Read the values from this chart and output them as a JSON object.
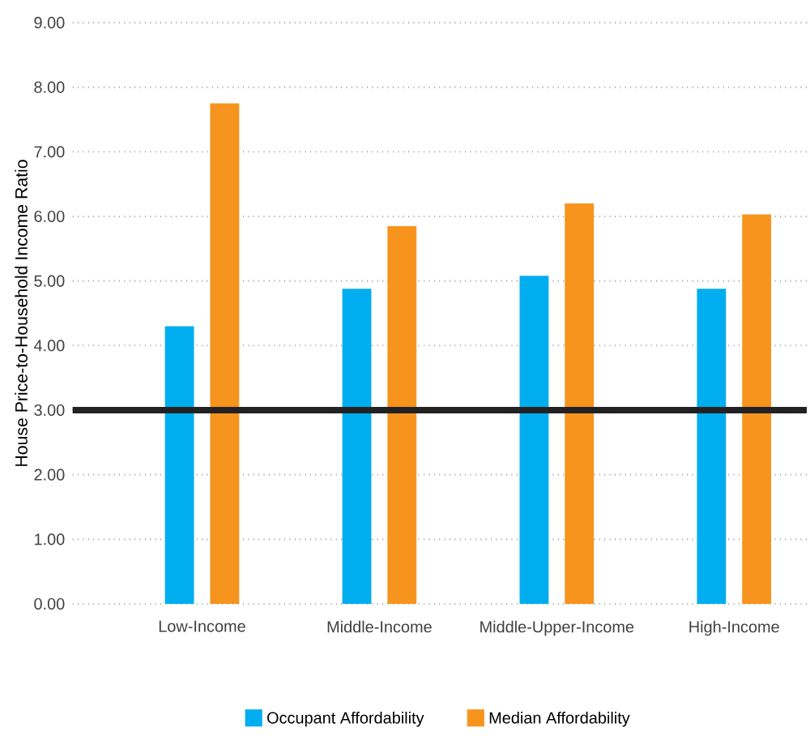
{
  "chart_data": {
    "type": "bar",
    "ylabel": "House Price-to-Household Income Ratio",
    "categories": [
      "Low-Income",
      "Middle-Income",
      "Middle-Upper-Income",
      "High-Income"
    ],
    "series": [
      {
        "name": "Occupant Affordability",
        "color": "#00aeef",
        "values": [
          4.3,
          4.88,
          5.08,
          4.88
        ]
      },
      {
        "name": "Median Affordability",
        "color": "#f7941d",
        "values": [
          7.75,
          5.85,
          6.2,
          6.03
        ]
      }
    ],
    "ylim": [
      0,
      9
    ],
    "yticks": [
      {
        "value": 0,
        "label": "0.00"
      },
      {
        "value": 1,
        "label": "1.00"
      },
      {
        "value": 2,
        "label": "2.00"
      },
      {
        "value": 3,
        "label": "3.00"
      },
      {
        "value": 4,
        "label": "4.00"
      },
      {
        "value": 5,
        "label": "5.00"
      },
      {
        "value": 6,
        "label": "6.00"
      },
      {
        "value": 7,
        "label": "7.00"
      },
      {
        "value": 8,
        "label": "8.00"
      },
      {
        "value": 9,
        "label": "9.00"
      }
    ],
    "ref_lines": [
      {
        "axis": "y",
        "value": 3,
        "color": "#222222"
      }
    ],
    "grid": "y",
    "legend": "bottom"
  }
}
